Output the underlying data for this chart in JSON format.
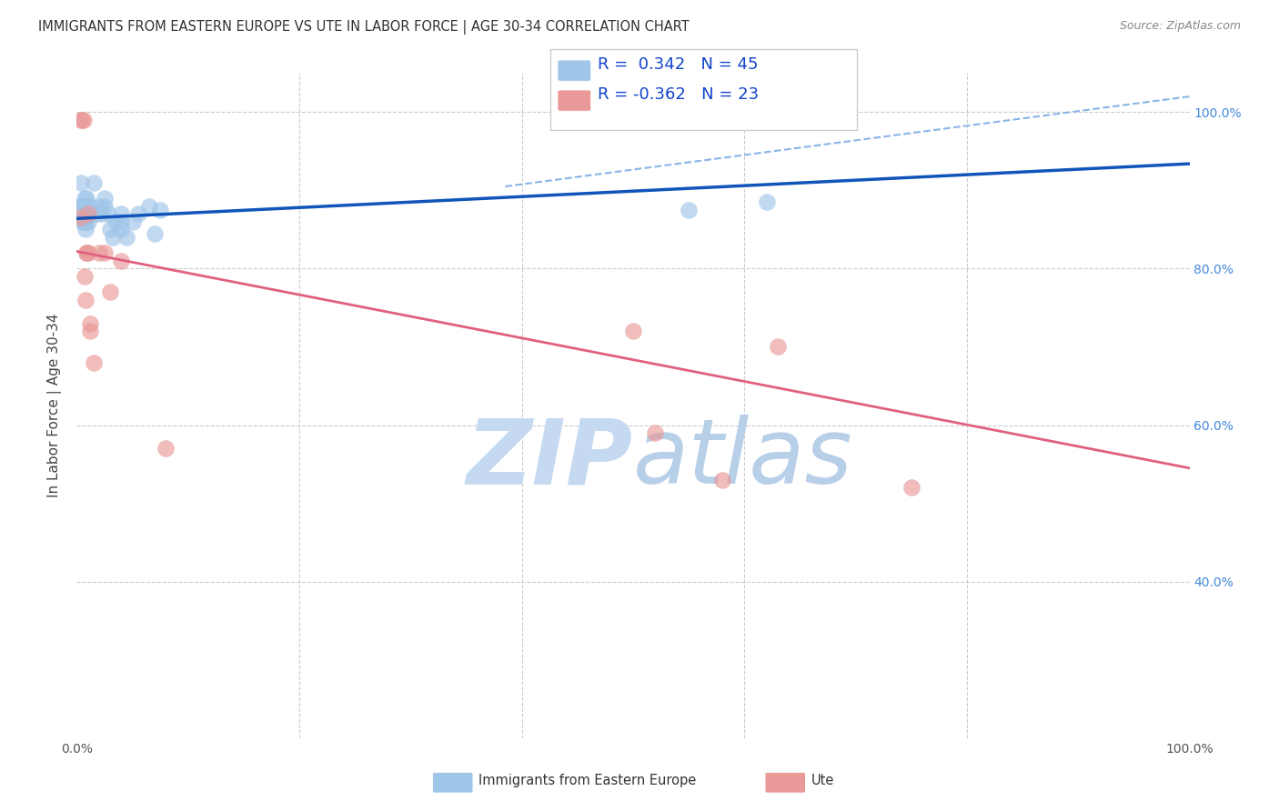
{
  "title": "IMMIGRANTS FROM EASTERN EUROPE VS UTE IN LABOR FORCE | AGE 30-34 CORRELATION CHART",
  "source": "Source: ZipAtlas.com",
  "ylabel": "In Labor Force | Age 30-34",
  "xlim": [
    0,
    1.0
  ],
  "ylim": [
    0.2,
    1.05
  ],
  "xtick_positions": [
    0.0,
    0.2,
    0.4,
    0.6,
    0.8,
    1.0
  ],
  "xtick_labels": [
    "0.0%",
    "",
    "",
    "",
    "",
    "100.0%"
  ],
  "ytick_positions_right": [
    0.4,
    0.6,
    0.8,
    1.0
  ],
  "ytick_labels_right": [
    "40.0%",
    "60.0%",
    "80.0%",
    "100.0%"
  ],
  "background_color": "#ffffff",
  "grid_color": "#cccccc",
  "blue_color": "#9fc5e8",
  "pink_color": "#ea9999",
  "blue_line_color": "#1155bb",
  "pink_line_color": "#e06080",
  "dashed_line_color": "#8ab4e8",
  "watermark_zip_color": "#c5d9f0",
  "watermark_atlas_color": "#b8cfe8",
  "legend_R_blue": "0.342",
  "legend_N_blue": "45",
  "legend_R_pink": "-0.362",
  "legend_N_pink": "23",
  "blue_scatter_x": [
    0.003,
    0.004,
    0.004,
    0.004,
    0.005,
    0.005,
    0.005,
    0.005,
    0.005,
    0.006,
    0.006,
    0.006,
    0.007,
    0.007,
    0.007,
    0.008,
    0.008,
    0.008,
    0.009,
    0.009,
    0.01,
    0.01,
    0.01,
    0.012,
    0.015,
    0.018,
    0.02,
    0.022,
    0.025,
    0.025,
    0.028,
    0.03,
    0.032,
    0.035,
    0.04,
    0.04,
    0.04,
    0.045,
    0.05,
    0.055,
    0.065,
    0.07,
    0.075,
    0.55,
    0.62
  ],
  "blue_scatter_y": [
    0.88,
    0.91,
    0.88,
    0.87,
    0.88,
    0.875,
    0.87,
    0.865,
    0.86,
    0.88,
    0.87,
    0.86,
    0.89,
    0.88,
    0.86,
    0.87,
    0.86,
    0.85,
    0.89,
    0.87,
    0.88,
    0.875,
    0.86,
    0.88,
    0.91,
    0.87,
    0.88,
    0.87,
    0.89,
    0.88,
    0.87,
    0.85,
    0.84,
    0.86,
    0.87,
    0.86,
    0.85,
    0.84,
    0.86,
    0.87,
    0.88,
    0.845,
    0.875,
    0.875,
    0.885
  ],
  "pink_scatter_x": [
    0.003,
    0.004,
    0.005,
    0.006,
    0.007,
    0.008,
    0.009,
    0.009,
    0.01,
    0.01,
    0.012,
    0.012,
    0.015,
    0.02,
    0.025,
    0.03,
    0.04,
    0.5,
    0.52,
    0.58,
    0.63,
    0.75,
    0.08
  ],
  "pink_scatter_y": [
    0.865,
    0.99,
    0.99,
    0.99,
    0.79,
    0.76,
    0.82,
    0.82,
    0.87,
    0.82,
    0.73,
    0.72,
    0.68,
    0.82,
    0.82,
    0.77,
    0.81,
    0.72,
    0.59,
    0.53,
    0.7,
    0.52,
    0.57
  ],
  "blue_line_y_start": 0.864,
  "blue_line_y_end": 0.934,
  "pink_line_y_start": 0.822,
  "pink_line_y_end": 0.545,
  "dashed_line_x_start": 0.385,
  "dashed_line_x_end": 1.0,
  "dashed_line_y_start": 0.905,
  "dashed_line_y_end": 1.02
}
